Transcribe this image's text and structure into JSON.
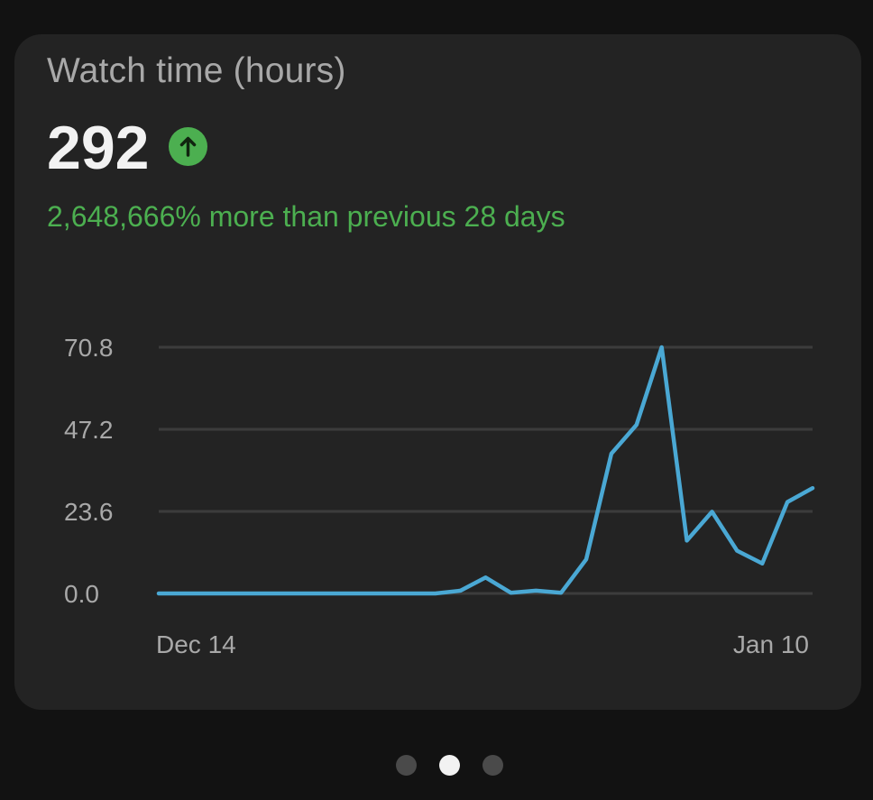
{
  "card": {
    "title": "Watch time (hours)",
    "value": "292",
    "trend_icon": "arrow-up-icon",
    "change_text": "2,648,666% more than previous 28 days"
  },
  "colors": {
    "background": "#121212",
    "card": "#232323",
    "positive": "#4caf50",
    "line": "#4aa8d4",
    "grid": "#3c3c3c"
  },
  "chart_data": {
    "type": "line",
    "title": "",
    "xlabel": "",
    "ylabel": "",
    "x_tick_labels": [
      "Dec 14",
      "Jan 10"
    ],
    "y_ticks": [
      0.0,
      23.6,
      47.2,
      70.8
    ],
    "y_tick_labels": [
      "0.0",
      "23.6",
      "47.2",
      "70.8"
    ],
    "ylim": [
      0,
      70.8
    ],
    "grid": true,
    "series": [
      {
        "values": [
          0,
          0,
          0,
          0,
          0,
          0,
          0,
          0,
          0,
          0,
          0,
          0,
          0.8,
          4.6,
          0.2,
          0.8,
          0.2,
          9.8,
          40.2,
          48.5,
          70.8,
          15.2,
          23.5,
          12.3,
          8.6,
          26.3,
          30.3
        ]
      }
    ]
  },
  "pagination": {
    "count": 3,
    "active_index": 1
  }
}
